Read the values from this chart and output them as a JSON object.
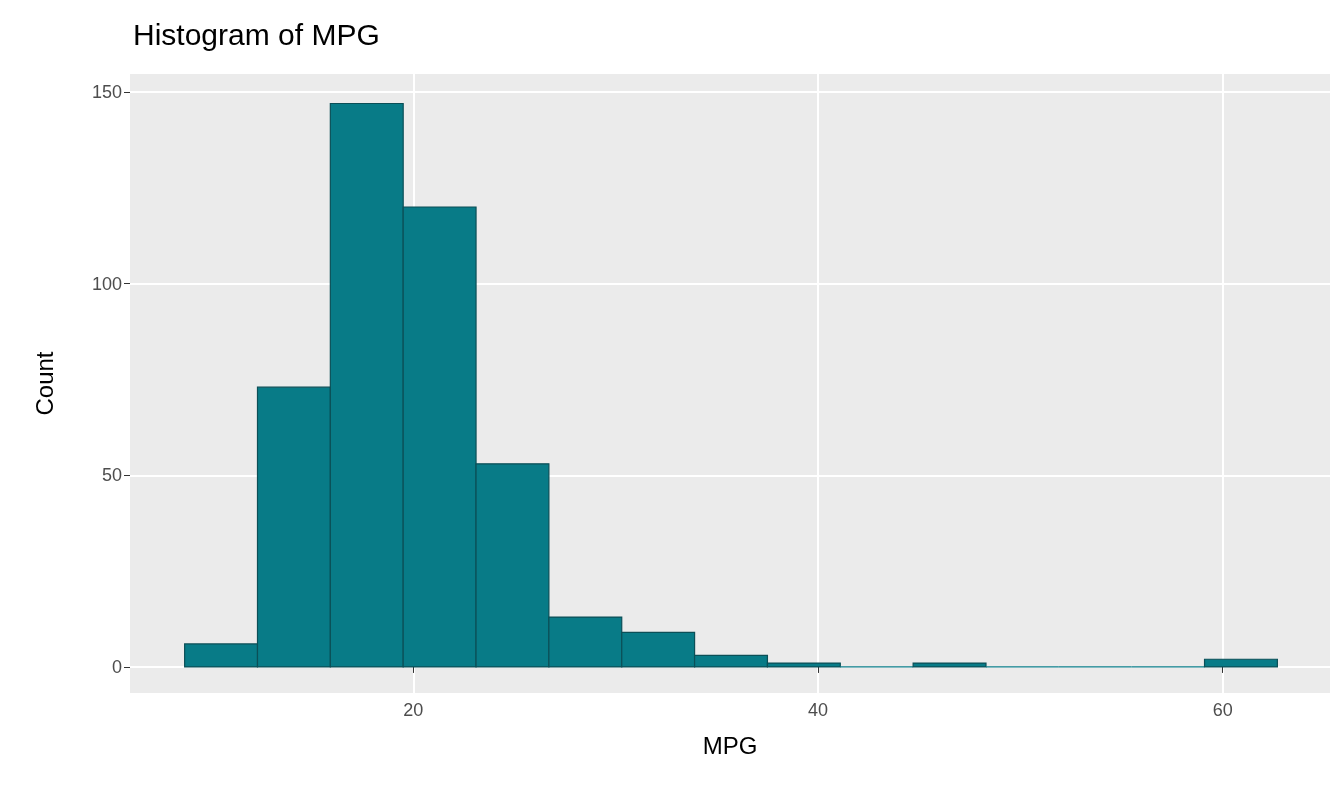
{
  "chart_data": {
    "type": "histogram",
    "title": "Histogram of MPG",
    "xlabel": "MPG",
    "ylabel": "Count",
    "bins": [
      8.7,
      12.3,
      15.9,
      19.5,
      23.1,
      26.7,
      30.3,
      33.9,
      37.5,
      41.1,
      44.7,
      48.3,
      51.9,
      55.5,
      59.1,
      62.7
    ],
    "values": [
      6,
      73,
      147,
      120,
      53,
      13,
      9,
      3,
      1,
      0,
      1,
      0,
      0,
      0,
      2
    ],
    "color": "#087b87",
    "xlim": [
      6,
      65.3
    ],
    "xticks": [
      20,
      40,
      60
    ],
    "ylim": [
      -6.8,
      154.7
    ],
    "yticks": [
      0,
      50,
      100,
      150
    ],
    "grid": true
  }
}
